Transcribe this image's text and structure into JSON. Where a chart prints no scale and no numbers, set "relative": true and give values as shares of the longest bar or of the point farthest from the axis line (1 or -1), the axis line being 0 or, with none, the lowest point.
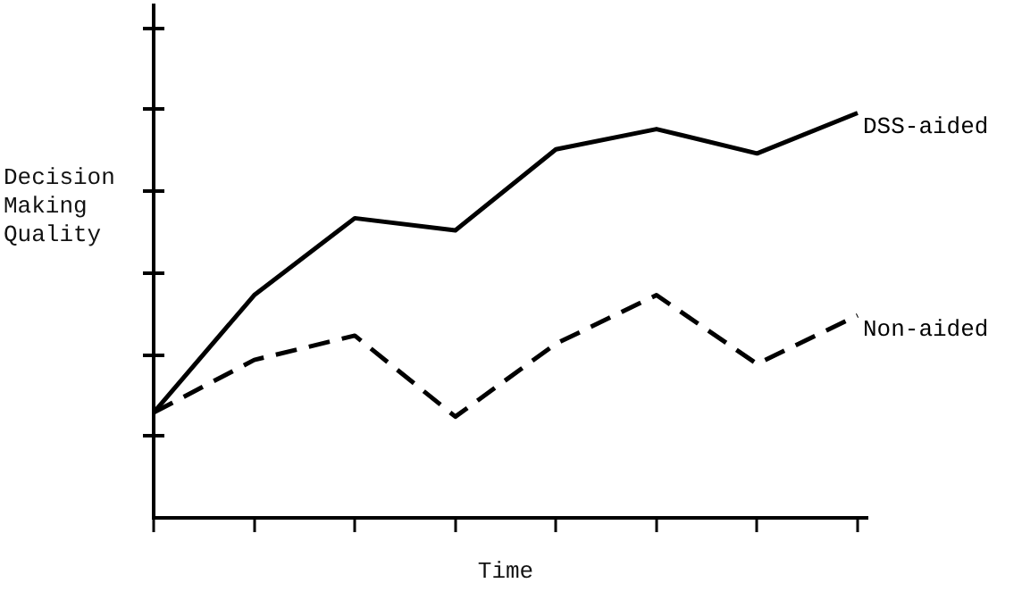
{
  "chart_data": {
    "type": "line",
    "relative": true,
    "xlabel": "Time",
    "ylabel": "Decision Making Quality",
    "categories": [
      null,
      null,
      null,
      null,
      null,
      null,
      null,
      null
    ],
    "marker": "none",
    "legend": false,
    "grid": false,
    "series": [
      {
        "name": "DSS-aided",
        "color": "#000000",
        "line_style": "solid",
        "values": [
          0.26,
          0.55,
          0.74,
          0.71,
          0.91,
          0.96,
          0.9,
          1
        ]
      },
      {
        "name": "Non-aided",
        "color": "#000000",
        "line_style": "dashed",
        "values": [
          0.26,
          0.39,
          0.45,
          0.25,
          0.43,
          0.55,
          0.38,
          0.5
        ]
      }
    ]
  }
}
